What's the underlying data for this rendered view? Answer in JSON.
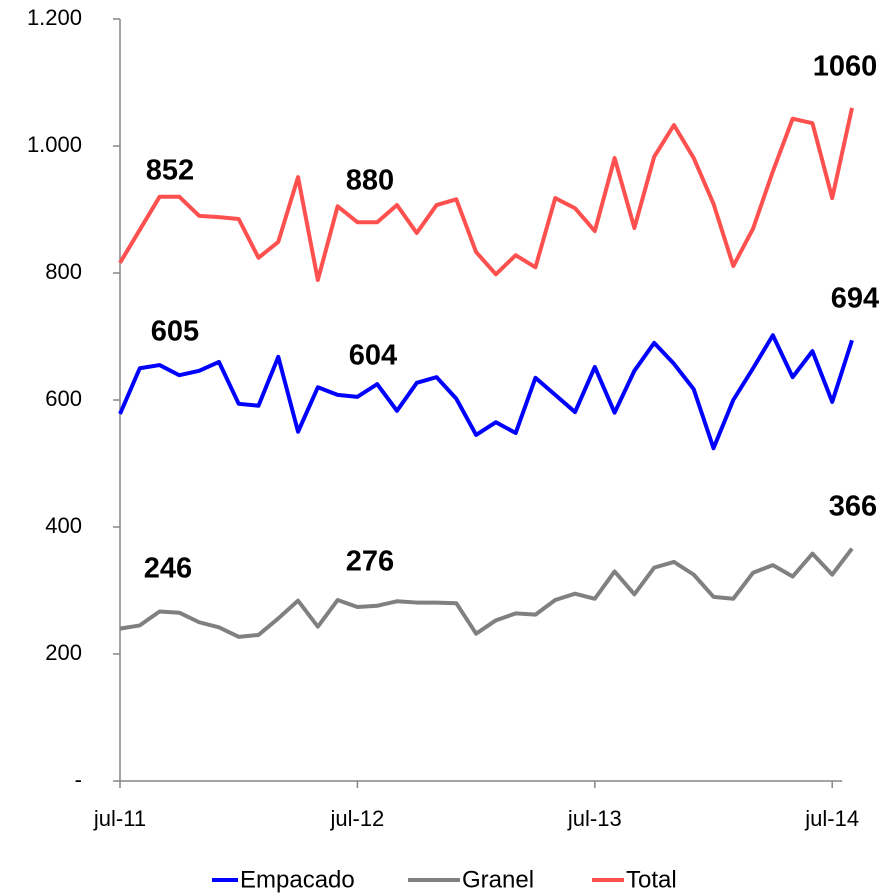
{
  "chart_data": {
    "type": "line",
    "categories": [
      "jul-11",
      null,
      null,
      null,
      null,
      null,
      null,
      null,
      null,
      null,
      null,
      null,
      "jul-12",
      null,
      null,
      null,
      null,
      null,
      null,
      null,
      null,
      null,
      null,
      null,
      "jul-13",
      null,
      null,
      null,
      null,
      null,
      null,
      null,
      null,
      null,
      null,
      null,
      "jul-14",
      null
    ],
    "ylim": [
      0,
      1200
    ],
    "yticks": [
      {
        "value": 0,
        "label": "-"
      },
      200,
      400,
      600,
      800,
      {
        "value": 1000,
        "label": "1.000"
      },
      {
        "value": 1200,
        "label": "1.200"
      }
    ],
    "legend": "bottom",
    "series": [
      {
        "name": "Empacado",
        "color": "#0000ff",
        "label_color": "#3f7cf0",
        "values": [
          578,
          650,
          655,
          639,
          646,
          660,
          594,
          591,
          668,
          550,
          620,
          608,
          605,
          625,
          583,
          627,
          636,
          602,
          545,
          565,
          548,
          635,
          608,
          581,
          652,
          580,
          646,
          690,
          657,
          617,
          524,
          600,
          650,
          702,
          636,
          677,
          597,
          694
        ],
        "annotations": [
          "605",
          "604",
          "694"
        ]
      },
      {
        "name": "Granel",
        "color": "#808080",
        "label_color": "#808080",
        "values": [
          240,
          245,
          267,
          265,
          250,
          242,
          227,
          230,
          256,
          284,
          243,
          285,
          274,
          276,
          283,
          281,
          281,
          280,
          232,
          253,
          264,
          262,
          285,
          295,
          287,
          330,
          294,
          336,
          345,
          325,
          290,
          287,
          328,
          340,
          322,
          358,
          325,
          366
        ],
        "annotations": [
          "246",
          "276",
          "366"
        ]
      },
      {
        "name": "Total",
        "color": "#ff5050",
        "label_color": "#c00000",
        "values": [
          816,
          868,
          920,
          920,
          890,
          888,
          885,
          824,
          849,
          951,
          789,
          905,
          880,
          880,
          907,
          863,
          907,
          916,
          833,
          798,
          828,
          809,
          918,
          902,
          866,
          981,
          871,
          983,
          1033,
          981,
          909,
          811,
          870,
          960,
          1043,
          1036,
          918,
          1060
        ],
        "annotations": [
          "852",
          "880",
          "1060"
        ]
      }
    ]
  }
}
